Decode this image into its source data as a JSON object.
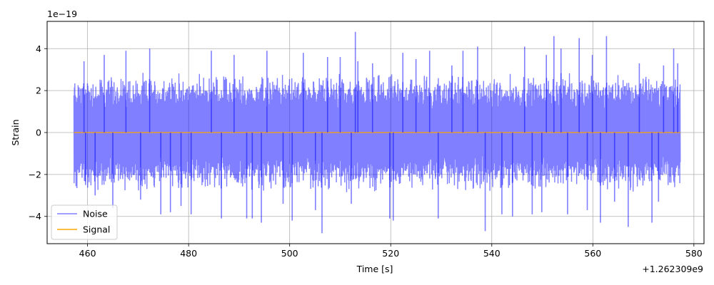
{
  "chart_data": {
    "type": "line",
    "xlabel": "Time [s]",
    "ylabel": "Strain",
    "x_offset_label": "+1.262309e9",
    "y_multiplier_label": "1e−19",
    "xlim": [
      452,
      582
    ],
    "ylim": [
      -5.3,
      5.3
    ],
    "x_ticks": [
      460,
      480,
      500,
      520,
      540,
      560,
      580
    ],
    "x_tick_labels": [
      "460",
      "480",
      "500",
      "520",
      "540",
      "560",
      "580"
    ],
    "y_ticks": [
      -4,
      -2,
      0,
      2,
      4
    ],
    "y_tick_labels": [
      "−4",
      "−2",
      "0",
      "2",
      "4"
    ],
    "grid": true,
    "legend_position": "bottom-left",
    "series": [
      {
        "name": "Noise",
        "color": "#0000ff",
        "opacity": 0.5,
        "x_range": [
          457.3,
          577.3
        ],
        "typical_amplitude": 2.9,
        "peaks": [
          {
            "x": 459.3,
            "y": 3.4
          },
          {
            "x": 459.6,
            "y": -2.5
          },
          {
            "x": 461.5,
            "y": -3.0
          },
          {
            "x": 463.3,
            "y": 3.7
          },
          {
            "x": 465.0,
            "y": -3.6
          },
          {
            "x": 467.6,
            "y": 3.9
          },
          {
            "x": 470.5,
            "y": -3.2
          },
          {
            "x": 472.3,
            "y": 4.0
          },
          {
            "x": 474.5,
            "y": -3.9
          },
          {
            "x": 476.4,
            "y": -3.8
          },
          {
            "x": 478.5,
            "y": -3.5
          },
          {
            "x": 480.5,
            "y": -3.9
          },
          {
            "x": 484.5,
            "y": 3.9
          },
          {
            "x": 486.5,
            "y": -4.1
          },
          {
            "x": 489.0,
            "y": 3.7
          },
          {
            "x": 491.5,
            "y": -4.1
          },
          {
            "x": 492.6,
            "y": -4.1
          },
          {
            "x": 494.4,
            "y": -4.3
          },
          {
            "x": 495.5,
            "y": 3.9
          },
          {
            "x": 498.7,
            "y": -3.4
          },
          {
            "x": 500.5,
            "y": -4.2
          },
          {
            "x": 502.7,
            "y": 3.8
          },
          {
            "x": 505.1,
            "y": -3.7
          },
          {
            "x": 506.4,
            "y": -4.8
          },
          {
            "x": 507.5,
            "y": 3.6
          },
          {
            "x": 510.0,
            "y": 3.6
          },
          {
            "x": 512.2,
            "y": -3.4
          },
          {
            "x": 513.0,
            "y": 4.8
          },
          {
            "x": 513.5,
            "y": 3.4
          },
          {
            "x": 516.4,
            "y": 3.3
          },
          {
            "x": 519.8,
            "y": -4.1
          },
          {
            "x": 520.5,
            "y": -4.2
          },
          {
            "x": 522.4,
            "y": 3.8
          },
          {
            "x": 525.0,
            "y": 3.5
          },
          {
            "x": 527.7,
            "y": 3.9
          },
          {
            "x": 529.4,
            "y": -4.1
          },
          {
            "x": 532.1,
            "y": 3.2
          },
          {
            "x": 534.3,
            "y": 3.9
          },
          {
            "x": 537.2,
            "y": 4.1
          },
          {
            "x": 538.7,
            "y": -4.7
          },
          {
            "x": 542.0,
            "y": -3.9
          },
          {
            "x": 544.1,
            "y": -4.0
          },
          {
            "x": 546.5,
            "y": 4.1
          },
          {
            "x": 548.0,
            "y": -3.9
          },
          {
            "x": 549.9,
            "y": -3.8
          },
          {
            "x": 550.8,
            "y": 3.7
          },
          {
            "x": 552.3,
            "y": 4.6
          },
          {
            "x": 553.7,
            "y": 4.0
          },
          {
            "x": 555.0,
            "y": -3.9
          },
          {
            "x": 557.3,
            "y": 4.5
          },
          {
            "x": 558.9,
            "y": -3.7
          },
          {
            "x": 559.9,
            "y": 3.7
          },
          {
            "x": 561.5,
            "y": -4.3
          },
          {
            "x": 562.7,
            "y": 4.6
          },
          {
            "x": 564.3,
            "y": -3.3
          },
          {
            "x": 567.0,
            "y": -4.5
          },
          {
            "x": 569.2,
            "y": 3.3
          },
          {
            "x": 571.7,
            "y": -4.3
          },
          {
            "x": 573.0,
            "y": -3.3
          },
          {
            "x": 574.0,
            "y": 3.2
          },
          {
            "x": 576.0,
            "y": 4.0
          },
          {
            "x": 576.8,
            "y": 3.3
          }
        ]
      },
      {
        "name": "Signal",
        "color": "#ffa500",
        "x_range": [
          457.3,
          577.3
        ],
        "value": 0
      }
    ]
  }
}
